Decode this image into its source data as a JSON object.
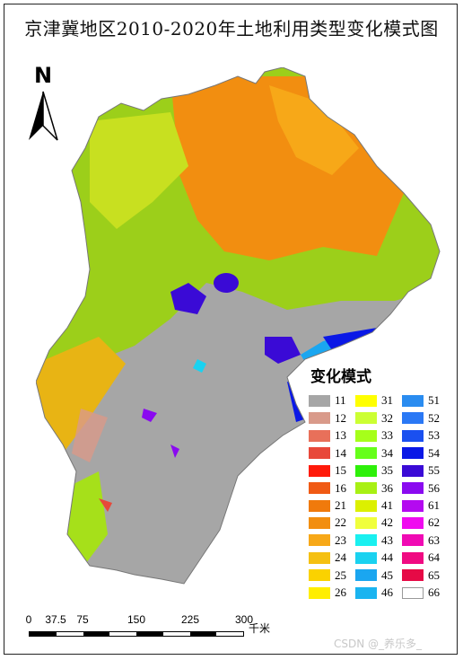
{
  "title": "京津冀地区2010-2020年土地利用类型变化模式图",
  "north_arrow": {
    "label": "N"
  },
  "legend": {
    "title": "变化模式",
    "items": [
      {
        "code": "11",
        "color": "#a6a6a6"
      },
      {
        "code": "12",
        "color": "#d99a8a"
      },
      {
        "code": "13",
        "color": "#e8705a"
      },
      {
        "code": "14",
        "color": "#e8483a"
      },
      {
        "code": "15",
        "color": "#ff1a0a"
      },
      {
        "code": "16",
        "color": "#f05a14"
      },
      {
        "code": "21",
        "color": "#f07a0c"
      },
      {
        "code": "22",
        "color": "#f28e10"
      },
      {
        "code": "23",
        "color": "#f7a818"
      },
      {
        "code": "24",
        "color": "#f5c012"
      },
      {
        "code": "25",
        "color": "#fad200"
      },
      {
        "code": "26",
        "color": "#ffee00"
      },
      {
        "code": "31",
        "color": "#ffff00"
      },
      {
        "code": "32",
        "color": "#ccff33"
      },
      {
        "code": "33",
        "color": "#a6ff1a"
      },
      {
        "code": "34",
        "color": "#66ff1a"
      },
      {
        "code": "35",
        "color": "#2ef00a"
      },
      {
        "code": "36",
        "color": "#a8f014"
      },
      {
        "code": "41",
        "color": "#dcf000"
      },
      {
        "code": "42",
        "color": "#f0ff3c"
      },
      {
        "code": "43",
        "color": "#1af0f0"
      },
      {
        "code": "44",
        "color": "#1ad2f0"
      },
      {
        "code": "45",
        "color": "#1aa6f0"
      },
      {
        "code": "46",
        "color": "#1ab4f0"
      },
      {
        "code": "51",
        "color": "#2a8cf0"
      },
      {
        "code": "52",
        "color": "#2a78f5"
      },
      {
        "code": "53",
        "color": "#1a50f0"
      },
      {
        "code": "54",
        "color": "#0a18e6"
      },
      {
        "code": "55",
        "color": "#3a0ad6"
      },
      {
        "code": "56",
        "color": "#8a0af0"
      },
      {
        "code": "61",
        "color": "#b40af0"
      },
      {
        "code": "62",
        "color": "#f00af0"
      },
      {
        "code": "63",
        "color": "#f00ab4"
      },
      {
        "code": "64",
        "color": "#f00a82"
      },
      {
        "code": "65",
        "color": "#e60a46"
      },
      {
        "code": "66",
        "color": "#ffffff"
      }
    ]
  },
  "scale_bar": {
    "ticks": [
      "0",
      "37.5",
      "75",
      "150",
      "225",
      "300"
    ],
    "tick_values": [
      0,
      37.5,
      75,
      150,
      225,
      300
    ],
    "unit": "千米"
  },
  "watermark": "CSDN @_养乐多_"
}
